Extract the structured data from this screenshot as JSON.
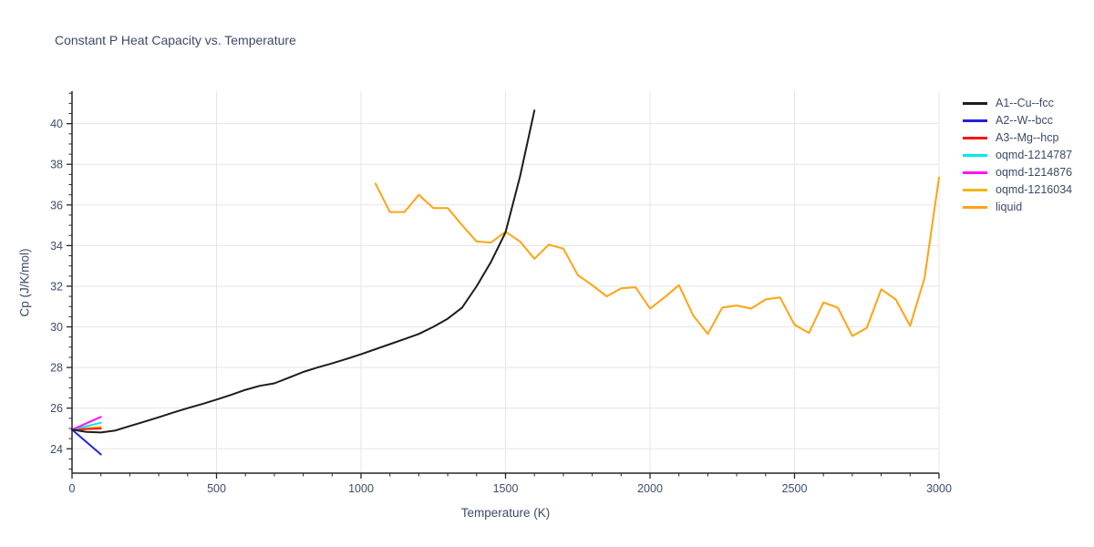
{
  "chart_data": {
    "type": "line",
    "title": "Constant P Heat Capacity vs. Temperature",
    "xlabel": "Temperature (K)",
    "ylabel": "Cp (J/K/mol)",
    "xlim": [
      0,
      3000
    ],
    "ylim": [
      22.8,
      41.6
    ],
    "x_major_ticks": [
      0,
      500,
      1000,
      1500,
      2000,
      2500,
      3000
    ],
    "x_minor_step": 100,
    "y_major_ticks": [
      24,
      26,
      28,
      30,
      32,
      34,
      36,
      38,
      40
    ],
    "y_minor_step": 0.5,
    "grid": "major-gridlines-on",
    "legend_position": "outside-right-top",
    "colors": {
      "background": "#ffffff",
      "grid": "#e5e5e5",
      "axis": "#262626",
      "text": "#3c4a68"
    },
    "series": [
      {
        "name": "A1--Cu--fcc",
        "color": "#1c1c1c",
        "x": [
          0,
          50,
          100,
          150,
          200,
          250,
          300,
          350,
          400,
          450,
          500,
          550,
          600,
          650,
          700,
          750,
          800,
          850,
          900,
          950,
          1000,
          1050,
          1100,
          1150,
          1200,
          1250,
          1300,
          1350,
          1400,
          1450,
          1500,
          1550,
          1600
        ],
        "y": [
          24.94,
          24.83,
          24.8,
          24.9,
          25.12,
          25.33,
          25.55,
          25.78,
          26.0,
          26.2,
          26.42,
          26.65,
          26.9,
          27.1,
          27.22,
          27.5,
          27.78,
          28.0,
          28.2,
          28.42,
          28.65,
          28.9,
          29.15,
          29.4,
          29.65,
          30.0,
          30.4,
          30.95,
          32.0,
          33.2,
          34.65,
          37.4,
          40.65
        ]
      },
      {
        "name": "A2--W--bcc",
        "color": "#2222dd",
        "x": [
          0,
          100
        ],
        "y": [
          24.94,
          23.72
        ]
      },
      {
        "name": "A3--Mg--hcp",
        "color": "#fa1414",
        "x": [
          0,
          100
        ],
        "y": [
          24.94,
          25.0
        ]
      },
      {
        "name": "oqmd-1214787",
        "color": "#00e8f0",
        "x": [
          0,
          100
        ],
        "y": [
          24.94,
          25.28
        ]
      },
      {
        "name": "oqmd-1214876",
        "color": "#ff12ff",
        "x": [
          0,
          100
        ],
        "y": [
          24.94,
          25.57
        ]
      },
      {
        "name": "oqmd-1216034",
        "color": "#efb810",
        "x": [
          0,
          100
        ],
        "y": [
          24.94,
          25.08
        ]
      },
      {
        "name": "liquid",
        "color": "#ffa312",
        "x": [
          1050,
          1100,
          1150,
          1200,
          1250,
          1300,
          1350,
          1400,
          1450,
          1500,
          1550,
          1600,
          1650,
          1700,
          1750,
          1800,
          1850,
          1900,
          1950,
          2000,
          2050,
          2100,
          2150,
          2200,
          2250,
          2300,
          2350,
          2400,
          2450,
          2500,
          2550,
          2600,
          2650,
          2700,
          2750,
          2800,
          2850,
          2900,
          2950,
          3000
        ],
        "y": [
          37.05,
          35.65,
          35.65,
          36.5,
          35.85,
          35.85,
          35.0,
          34.2,
          34.15,
          34.68,
          34.2,
          33.35,
          34.05,
          33.85,
          32.55,
          32.05,
          31.5,
          31.9,
          31.95,
          30.9,
          31.45,
          32.05,
          30.55,
          29.65,
          30.95,
          31.05,
          30.9,
          31.35,
          31.45,
          30.1,
          29.7,
          31.2,
          30.95,
          29.55,
          29.95,
          31.85,
          31.35,
          30.05,
          32.4,
          37.35
        ]
      }
    ]
  }
}
